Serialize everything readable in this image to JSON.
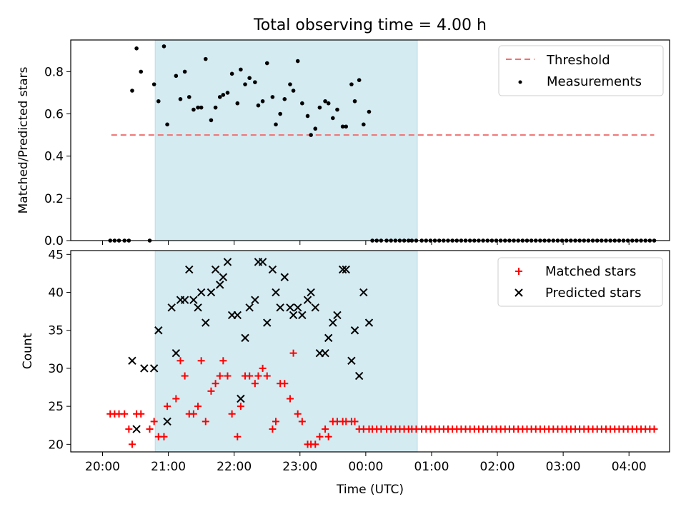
{
  "figure": {
    "title": "Total observing time = 4.00 h",
    "xlabel": "Time (UTC)",
    "x_ticks": [
      "20:00",
      "21:00",
      "22:00",
      "23:00",
      "00:00",
      "01:00",
      "02:00",
      "03:00",
      "04:00"
    ],
    "observing_window": {
      "start_min": 48,
      "end_min": 287,
      "color": "#d4ebf2"
    }
  },
  "chart_data": [
    {
      "type": "scatter",
      "ylabel": "Matched/Predicted stars",
      "ylim": [
        0,
        0.95
      ],
      "yticks": [
        "0.0",
        "0.2",
        "0.4",
        "0.6",
        "0.8"
      ],
      "x_unit": "minutes after 20:00 UTC",
      "threshold": {
        "name": "Threshold",
        "value": 0.5,
        "x_range": [
          8,
          503
        ],
        "color": "#f07070"
      },
      "series": [
        {
          "name": "Measurements",
          "color": "#000000",
          "x": [
            7,
            11,
            15,
            20,
            24,
            27,
            31,
            35,
            43,
            47,
            51,
            56,
            59,
            67,
            71,
            75,
            79,
            83,
            87,
            90,
            94,
            99,
            103,
            107,
            110,
            114,
            118,
            123,
            126,
            130,
            134,
            139,
            142,
            146,
            150,
            155,
            158,
            162,
            166,
            171,
            174,
            178,
            182,
            187,
            190,
            194,
            198,
            203,
            206,
            210,
            214,
            219,
            222,
            227,
            230,
            234,
            238,
            243,
            246,
            250,
            254,
            259,
            263,
            267,
            271,
            275,
            279,
            282,
            286,
            291,
            295,
            299,
            303,
            307,
            311,
            315,
            319,
            323,
            327,
            331,
            335,
            339,
            343,
            347,
            351,
            355,
            359,
            363,
            367,
            371,
            375,
            379,
            383,
            387,
            391,
            395,
            399,
            403,
            407,
            411,
            415,
            419,
            423,
            427,
            431,
            435,
            439,
            443,
            447,
            451,
            455,
            459,
            463,
            467,
            471,
            475,
            479,
            483,
            487,
            491,
            495,
            499,
            503
          ],
          "y": [
            0,
            0,
            0,
            0,
            0,
            0.71,
            0.91,
            0.8,
            0,
            0.74,
            0.66,
            0.92,
            0.55,
            0.78,
            0.67,
            0.8,
            0.68,
            0.62,
            0.63,
            0.63,
            0.86,
            0.57,
            0.63,
            0.68,
            0.69,
            0.7,
            0.79,
            0.65,
            0.81,
            0.74,
            0.77,
            0.75,
            0.64,
            0.66,
            0.84,
            0.68,
            0.55,
            0.6,
            0.67,
            0.74,
            0.71,
            0.85,
            0.65,
            0.59,
            0.5,
            0.53,
            0.63,
            0.66,
            0.65,
            0.58,
            0.62,
            0.54,
            0.54,
            0.74,
            0.66,
            0.76,
            0.55,
            0.61,
            0,
            0,
            0,
            0,
            0,
            0,
            0,
            0,
            0,
            0,
            0,
            0,
            0,
            0,
            0,
            0,
            0,
            0,
            0,
            0,
            0,
            0,
            0,
            0,
            0,
            0,
            0,
            0,
            0,
            0,
            0,
            0,
            0,
            0,
            0,
            0,
            0,
            0,
            0,
            0,
            0,
            0,
            0,
            0,
            0,
            0,
            0,
            0,
            0,
            0,
            0,
            0,
            0,
            0,
            0,
            0,
            0,
            0,
            0,
            0,
            0,
            0,
            0,
            0,
            0
          ]
        }
      ]
    },
    {
      "type": "scatter",
      "ylabel": "Count",
      "ylim": [
        19,
        45.5
      ],
      "yticks": [
        "20",
        "25",
        "30",
        "35",
        "40",
        "45"
      ],
      "x_unit": "minutes after 20:00 UTC",
      "series": [
        {
          "name": "Matched stars",
          "marker": "+",
          "color": "#ff0000",
          "x": [
            7,
            11,
            15,
            20,
            24,
            27,
            31,
            35,
            43,
            47,
            51,
            56,
            59,
            67,
            71,
            75,
            79,
            83,
            87,
            90,
            94,
            99,
            103,
            107,
            110,
            114,
            118,
            123,
            126,
            130,
            134,
            139,
            142,
            146,
            150,
            155,
            158,
            162,
            166,
            171,
            174,
            178,
            182,
            187,
            190,
            194,
            198,
            203,
            206,
            210,
            214,
            219,
            222,
            227,
            230,
            234,
            238,
            243,
            246,
            250,
            254,
            259,
            263,
            267,
            271,
            275,
            279,
            282,
            286,
            291,
            295,
            299,
            303,
            307,
            311,
            315,
            319,
            323,
            327,
            331,
            335,
            339,
            343,
            347,
            351,
            355,
            359,
            363,
            367,
            371,
            375,
            379,
            383,
            387,
            391,
            395,
            399,
            403,
            407,
            411,
            415,
            419,
            423,
            427,
            431,
            435,
            439,
            443,
            447,
            451,
            455,
            459,
            463,
            467,
            471,
            475,
            479,
            483,
            487,
            491,
            495,
            499,
            503
          ],
          "y": [
            24,
            24,
            24,
            24,
            22,
            20,
            24,
            24,
            22,
            23,
            21,
            21,
            25,
            26,
            31,
            29,
            24,
            24,
            25,
            31,
            23,
            27,
            28,
            29,
            31,
            29,
            24,
            21,
            25,
            29,
            29,
            28,
            29,
            30,
            29,
            22,
            23,
            28,
            28,
            26,
            32,
            24,
            23,
            20,
            20,
            20,
            21,
            22,
            21,
            23,
            23,
            23,
            23,
            23,
            23,
            22,
            22,
            22,
            22,
            22,
            22,
            22,
            22,
            22,
            22,
            22,
            22,
            22,
            22,
            22,
            22,
            22,
            22,
            22,
            22,
            22,
            22,
            22,
            22,
            22,
            22,
            22,
            22,
            22,
            22,
            22,
            22,
            22,
            22,
            22,
            22,
            22,
            22,
            22,
            22,
            22,
            22,
            22,
            22,
            22,
            22,
            22,
            22,
            22,
            22,
            22,
            22,
            22,
            22,
            22,
            22,
            22,
            22,
            22,
            22,
            22,
            22,
            22,
            22,
            22,
            22,
            22,
            22
          ]
        },
        {
          "name": "Predicted stars",
          "marker": "x",
          "color": "#000000",
          "x": [
            27,
            31,
            38,
            47,
            51,
            59,
            63,
            67,
            71,
            75,
            79,
            83,
            87,
            90,
            94,
            99,
            103,
            107,
            110,
            114,
            118,
            123,
            126,
            130,
            134,
            139,
            142,
            146,
            150,
            155,
            158,
            162,
            166,
            171,
            174,
            178,
            182,
            187,
            190,
            194,
            198,
            203,
            206,
            210,
            214,
            219,
            222,
            227,
            230,
            234,
            238,
            243,
            246,
            250,
            254,
            259,
            263,
            267,
            271,
            275,
            279,
            282,
            286,
            291,
            295,
            299,
            303,
            307,
            311,
            315,
            319,
            323,
            327,
            331,
            335,
            339,
            343,
            347,
            351,
            355,
            359,
            363,
            367,
            371,
            375,
            379,
            383,
            387,
            391,
            395,
            399,
            403,
            407,
            411,
            415,
            419,
            423,
            427,
            431,
            435,
            439,
            443,
            447,
            451,
            455,
            459,
            463,
            467,
            471,
            475,
            479,
            483,
            487,
            491,
            495,
            499,
            503
          ],
          "y": [
            31,
            22,
            30,
            30,
            35,
            23,
            38,
            32,
            39,
            39,
            43,
            39,
            38,
            40,
            36,
            40,
            43,
            41,
            42,
            44,
            37,
            37,
            26,
            34,
            38,
            39,
            44,
            44,
            36,
            43,
            40,
            38,
            42,
            38,
            37,
            38,
            37,
            39,
            40,
            38,
            32,
            32,
            34,
            36,
            37,
            43,
            43,
            31,
            35,
            29,
            40,
            36,
            null,
            null,
            null,
            null,
            null,
            null,
            null,
            null,
            null,
            null,
            null,
            null,
            null,
            null,
            null,
            null,
            null,
            null,
            null,
            null,
            null,
            null,
            null,
            null,
            null,
            null,
            null,
            null,
            null,
            null,
            null,
            null,
            null,
            null,
            null,
            null,
            null,
            null,
            null,
            null,
            null,
            null,
            null,
            null,
            null,
            null,
            null,
            null,
            null,
            null,
            null,
            null,
            null,
            null,
            null,
            null,
            null,
            null,
            null,
            null,
            null,
            null,
            null,
            null,
            null
          ]
        }
      ]
    }
  ]
}
